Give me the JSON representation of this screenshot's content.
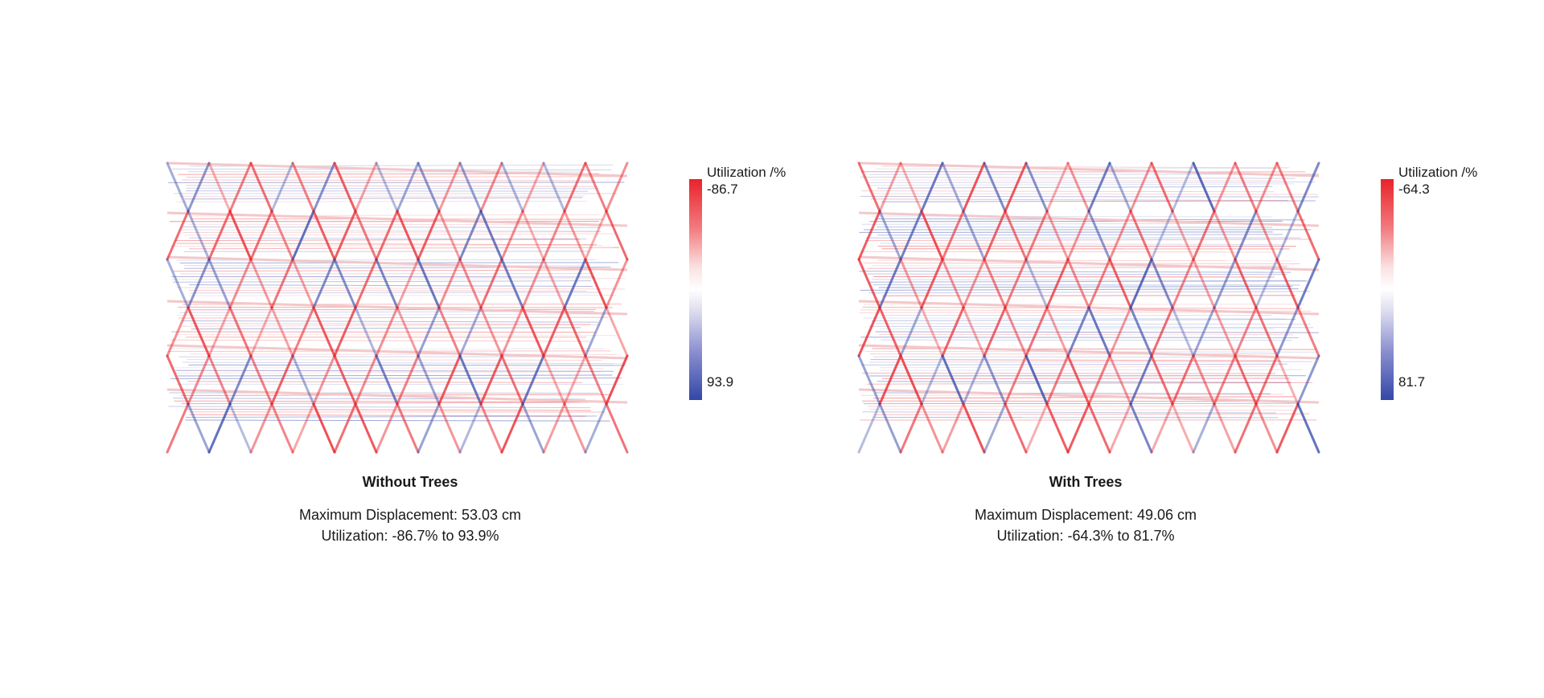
{
  "panels": [
    {
      "title": "Without Trees",
      "displacement": "Maximum Displacement: 53.03 cm",
      "utilization": "Utilization: -86.7% to 93.9%",
      "legend": {
        "title": "Utilization /%",
        "max_label": "-86.7",
        "min_label": "93.9"
      }
    },
    {
      "title": "With Trees",
      "displacement": "Maximum Displacement: 49.06 cm",
      "utilization": "Utilization: -64.3% to 81.7%",
      "legend": {
        "title": "Utilization /%",
        "max_label": "-64.3",
        "min_label": "81.7"
      }
    }
  ],
  "colors": {
    "tension": "#e8232a",
    "neutral": "#ffffff",
    "compression": "#3347a8"
  }
}
